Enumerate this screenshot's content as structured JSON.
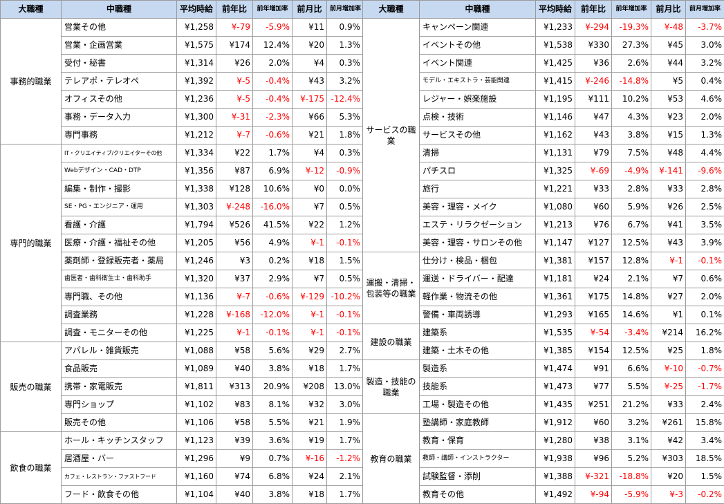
{
  "headers": {
    "major": "大職種",
    "mid": "中職種",
    "avg": "平均時給",
    "yoy": "前年比",
    "yoy_rate": "前年増加率",
    "mom": "前月比",
    "mom_rate": "前月増加率"
  },
  "left_groups": [
    {
      "major": "事務的職業",
      "rows": [
        {
          "mid": "営業その他",
          "avg": "¥1,258",
          "yoy": "¥-79",
          "yoy_rate": "-5.9%",
          "mom": "¥11",
          "mom_rate": "0.9%"
        },
        {
          "mid": "営業・企画営業",
          "avg": "¥1,575",
          "yoy": "¥174",
          "yoy_rate": "12.4%",
          "mom": "¥20",
          "mom_rate": "1.3%"
        },
        {
          "mid": "受付・秘書",
          "avg": "¥1,314",
          "yoy": "¥26",
          "yoy_rate": "2.0%",
          "mom": "¥4",
          "mom_rate": "0.3%"
        },
        {
          "mid": "テレアポ・テレオペ",
          "avg": "¥1,392",
          "yoy": "¥-5",
          "yoy_rate": "-0.4%",
          "mom": "¥43",
          "mom_rate": "3.2%"
        },
        {
          "mid": "オフィスその他",
          "avg": "¥1,236",
          "yoy": "¥-5",
          "yoy_rate": "-0.4%",
          "mom": "¥-175",
          "mom_rate": "-12.4%"
        },
        {
          "mid": "事務・データ入力",
          "avg": "¥1,300",
          "yoy": "¥-31",
          "yoy_rate": "-2.3%",
          "mom": "¥66",
          "mom_rate": "5.3%"
        },
        {
          "mid": "専門事務",
          "avg": "¥1,212",
          "yoy": "¥-7",
          "yoy_rate": "-0.6%",
          "mom": "¥21",
          "mom_rate": "1.8%"
        }
      ]
    },
    {
      "major": "専門的職業",
      "rows": [
        {
          "mid": "IT・クリエイティブ/クリエイターその他",
          "avg": "¥1,334",
          "yoy": "¥22",
          "yoy_rate": "1.7%",
          "mom": "¥4",
          "mom_rate": "0.3%"
        },
        {
          "mid": "Webデザイン・CAD・DTP",
          "avg": "¥1,356",
          "yoy": "¥87",
          "yoy_rate": "6.9%",
          "mom": "¥-12",
          "mom_rate": "-0.9%"
        },
        {
          "mid": "編集・制作・撮影",
          "avg": "¥1,338",
          "yoy": "¥128",
          "yoy_rate": "10.6%",
          "mom": "¥0",
          "mom_rate": "0.0%"
        },
        {
          "mid": "SE・PG・エンジニア・運用",
          "avg": "¥1,303",
          "yoy": "¥-248",
          "yoy_rate": "-16.0%",
          "mom": "¥7",
          "mom_rate": "0.5%"
        },
        {
          "mid": "看護・介護",
          "avg": "¥1,794",
          "yoy": "¥526",
          "yoy_rate": "41.5%",
          "mom": "¥22",
          "mom_rate": "1.2%"
        },
        {
          "mid": "医療・介護・福祉その他",
          "avg": "¥1,205",
          "yoy": "¥56",
          "yoy_rate": "4.9%",
          "mom": "¥-1",
          "mom_rate": "-0.1%"
        },
        {
          "mid": "薬剤師・登録販売者・薬局",
          "avg": "¥1,246",
          "yoy": "¥3",
          "yoy_rate": "0.2%",
          "mom": "¥18",
          "mom_rate": "1.5%"
        },
        {
          "mid": "歯医者・歯科衛生士・歯科助手",
          "avg": "¥1,320",
          "yoy": "¥37",
          "yoy_rate": "2.9%",
          "mom": "¥7",
          "mom_rate": "0.5%"
        },
        {
          "mid": "専門職、その他",
          "avg": "¥1,136",
          "yoy": "¥-7",
          "yoy_rate": "-0.6%",
          "mom": "¥-129",
          "mom_rate": "-10.2%"
        },
        {
          "mid": "調査業務",
          "avg": "¥1,228",
          "yoy": "¥-168",
          "yoy_rate": "-12.0%",
          "mom": "¥-1",
          "mom_rate": "-0.1%"
        },
        {
          "mid": "調査・モニターその他",
          "avg": "¥1,225",
          "yoy": "¥-1",
          "yoy_rate": "-0.1%",
          "mom": "¥-1",
          "mom_rate": "-0.1%"
        }
      ]
    },
    {
      "major": "販売の職業",
      "rows": [
        {
          "mid": "アパレル・雑貨販売",
          "avg": "¥1,088",
          "yoy": "¥58",
          "yoy_rate": "5.6%",
          "mom": "¥29",
          "mom_rate": "2.7%"
        },
        {
          "mid": "食品販売",
          "avg": "¥1,089",
          "yoy": "¥40",
          "yoy_rate": "3.8%",
          "mom": "¥18",
          "mom_rate": "1.7%"
        },
        {
          "mid": "携帯・家電販売",
          "avg": "¥1,811",
          "yoy": "¥313",
          "yoy_rate": "20.9%",
          "mom": "¥208",
          "mom_rate": "13.0%"
        },
        {
          "mid": "専門ショップ",
          "avg": "¥1,102",
          "yoy": "¥83",
          "yoy_rate": "8.1%",
          "mom": "¥32",
          "mom_rate": "3.0%"
        },
        {
          "mid": "販売その他",
          "avg": "¥1,106",
          "yoy": "¥58",
          "yoy_rate": "5.5%",
          "mom": "¥21",
          "mom_rate": "1.9%"
        }
      ]
    },
    {
      "major": "飲食の職業",
      "rows": [
        {
          "mid": "ホール・キッチンスタッフ",
          "avg": "¥1,123",
          "yoy": "¥39",
          "yoy_rate": "3.6%",
          "mom": "¥19",
          "mom_rate": "1.7%"
        },
        {
          "mid": "居酒屋・バー",
          "avg": "¥1,296",
          "yoy": "¥9",
          "yoy_rate": "0.7%",
          "mom": "¥-16",
          "mom_rate": "-1.2%"
        },
        {
          "mid": "カフェ・レストラン・ファストフード",
          "avg": "¥1,160",
          "yoy": "¥74",
          "yoy_rate": "6.8%",
          "mom": "¥24",
          "mom_rate": "2.1%"
        },
        {
          "mid": "フード・飲食その他",
          "avg": "¥1,104",
          "yoy": "¥40",
          "yoy_rate": "3.8%",
          "mom": "¥18",
          "mom_rate": "1.7%"
        }
      ]
    }
  ],
  "right_groups": [
    {
      "major": "サービスの職業",
      "rows": [
        {
          "mid": "キャンペーン関連",
          "avg": "¥1,233",
          "yoy": "¥-294",
          "yoy_rate": "-19.3%",
          "mom": "¥-48",
          "mom_rate": "-3.7%"
        },
        {
          "mid": "イベントその他",
          "avg": "¥1,538",
          "yoy": "¥330",
          "yoy_rate": "27.3%",
          "mom": "¥45",
          "mom_rate": "3.0%"
        },
        {
          "mid": "イベント関連",
          "avg": "¥1,425",
          "yoy": "¥36",
          "yoy_rate": "2.6%",
          "mom": "¥44",
          "mom_rate": "3.2%"
        },
        {
          "mid": "モデル・エキストラ・芸能関連",
          "avg": "¥1,415",
          "yoy": "¥-246",
          "yoy_rate": "-14.8%",
          "mom": "¥5",
          "mom_rate": "0.4%"
        },
        {
          "mid": "レジャー・娯楽施設",
          "avg": "¥1,195",
          "yoy": "¥111",
          "yoy_rate": "10.2%",
          "mom": "¥53",
          "mom_rate": "4.6%"
        },
        {
          "mid": "点検・技術",
          "avg": "¥1,146",
          "yoy": "¥47",
          "yoy_rate": "4.3%",
          "mom": "¥23",
          "mom_rate": "2.0%"
        },
        {
          "mid": "サービスその他",
          "avg": "¥1,162",
          "yoy": "¥43",
          "yoy_rate": "3.8%",
          "mom": "¥15",
          "mom_rate": "1.3%"
        },
        {
          "mid": "清掃",
          "avg": "¥1,131",
          "yoy": "¥79",
          "yoy_rate": "7.5%",
          "mom": "¥48",
          "mom_rate": "4.4%"
        },
        {
          "mid": "パチスロ",
          "avg": "¥1,325",
          "yoy": "¥-69",
          "yoy_rate": "-4.9%",
          "mom": "¥-141",
          "mom_rate": "-9.6%"
        },
        {
          "mid": "旅行",
          "avg": "¥1,221",
          "yoy": "¥33",
          "yoy_rate": "2.8%",
          "mom": "¥33",
          "mom_rate": "2.8%"
        },
        {
          "mid": "美容・理容・メイク",
          "avg": "¥1,080",
          "yoy": "¥60",
          "yoy_rate": "5.9%",
          "mom": "¥26",
          "mom_rate": "2.5%"
        },
        {
          "mid": "エステ・リラクゼーション",
          "avg": "¥1,213",
          "yoy": "¥76",
          "yoy_rate": "6.7%",
          "mom": "¥41",
          "mom_rate": "3.5%"
        },
        {
          "mid": "美容・理容・サロンその他",
          "avg": "¥1,147",
          "yoy": "¥127",
          "yoy_rate": "12.5%",
          "mom": "¥43",
          "mom_rate": "3.9%"
        }
      ]
    },
    {
      "major": "運搬・清掃・包装等の職業",
      "rows": [
        {
          "mid": "仕分け・検品・梱包",
          "avg": "¥1,381",
          "yoy": "¥157",
          "yoy_rate": "12.8%",
          "mom": "¥-1",
          "mom_rate": "-0.1%"
        },
        {
          "mid": "運送・ドライバー・配達",
          "avg": "¥1,181",
          "yoy": "¥24",
          "yoy_rate": "2.1%",
          "mom": "¥7",
          "mom_rate": "0.6%"
        },
        {
          "mid": "軽作業・物流その他",
          "avg": "¥1,361",
          "yoy": "¥175",
          "yoy_rate": "14.8%",
          "mom": "¥27",
          "mom_rate": "2.0%"
        },
        {
          "mid": "警備・車両誘導",
          "avg": "¥1,293",
          "yoy": "¥165",
          "yoy_rate": "14.6%",
          "mom": "¥1",
          "mom_rate": "0.1%"
        }
      ]
    },
    {
      "major": "建設の職業",
      "rows": [
        {
          "mid": "建築系",
          "avg": "¥1,535",
          "yoy": "¥-54",
          "yoy_rate": "-3.4%",
          "mom": "¥214",
          "mom_rate": "16.2%"
        },
        {
          "mid": "建築・土木その他",
          "avg": "¥1,385",
          "yoy": "¥154",
          "yoy_rate": "12.5%",
          "mom": "¥25",
          "mom_rate": "1.8%"
        }
      ]
    },
    {
      "major": "製造・技能の職業",
      "rows": [
        {
          "mid": "製造系",
          "avg": "¥1,474",
          "yoy": "¥91",
          "yoy_rate": "6.6%",
          "mom": "¥-10",
          "mom_rate": "-0.7%"
        },
        {
          "mid": "技能系",
          "avg": "¥1,473",
          "yoy": "¥77",
          "yoy_rate": "5.5%",
          "mom": "¥-25",
          "mom_rate": "-1.7%"
        },
        {
          "mid": "工場・製造その他",
          "avg": "¥1,435",
          "yoy": "¥251",
          "yoy_rate": "21.2%",
          "mom": "¥33",
          "mom_rate": "2.4%"
        }
      ]
    },
    {
      "major": "教育の職業",
      "rows": [
        {
          "mid": "塾講師・家庭教師",
          "avg": "¥1,912",
          "yoy": "¥60",
          "yoy_rate": "3.2%",
          "mom": "¥261",
          "mom_rate": "15.8%"
        },
        {
          "mid": "教育・保育",
          "avg": "¥1,280",
          "yoy": "¥38",
          "yoy_rate": "3.1%",
          "mom": "¥42",
          "mom_rate": "3.4%"
        },
        {
          "mid": "教師・講師・インストラクター",
          "avg": "¥1,938",
          "yoy": "¥96",
          "yoy_rate": "5.2%",
          "mom": "¥303",
          "mom_rate": "18.5%"
        },
        {
          "mid": "試験監督・添削",
          "avg": "¥1,388",
          "yoy": "¥-321",
          "yoy_rate": "-18.8%",
          "mom": "¥20",
          "mom_rate": "1.5%"
        },
        {
          "mid": "教育その他",
          "avg": "¥1,492",
          "yoy": "¥-94",
          "yoy_rate": "-5.9%",
          "mom": "¥-3",
          "mom_rate": "-0.2%"
        }
      ]
    }
  ]
}
